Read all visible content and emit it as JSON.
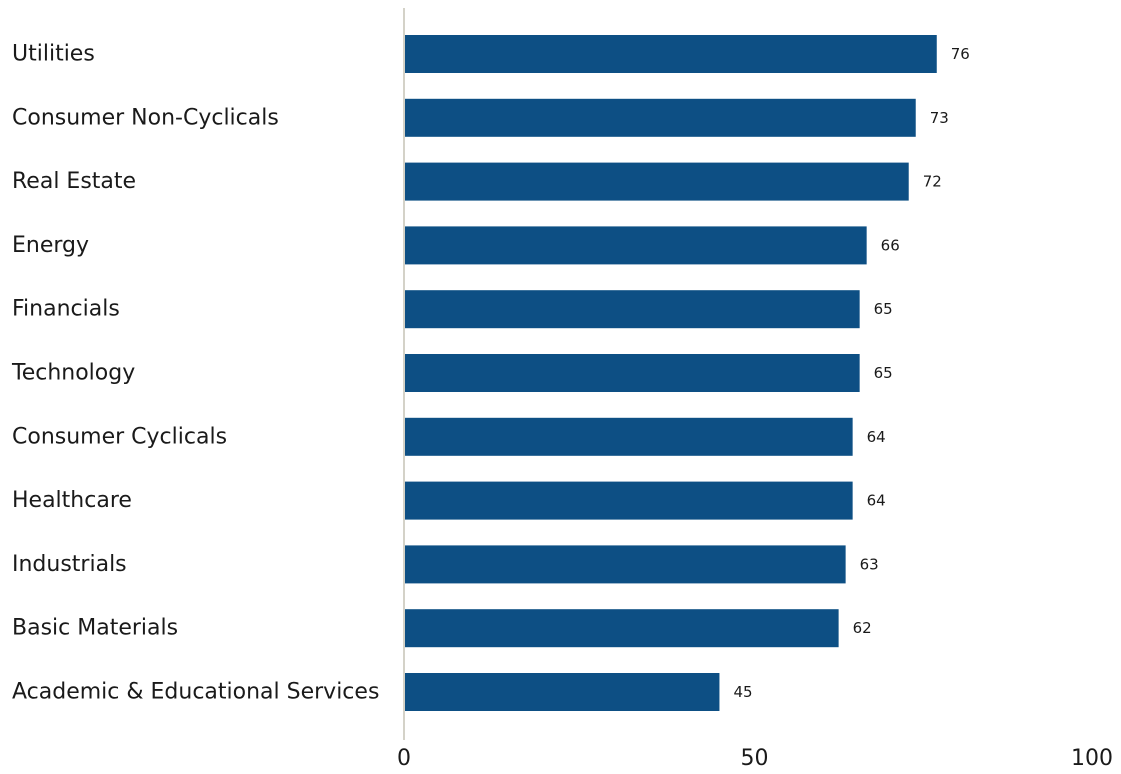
{
  "chart_data": {
    "type": "bar",
    "orientation": "horizontal",
    "categories": [
      "Utilities",
      "Consumer Non-Cyclicals",
      "Real Estate",
      "Energy",
      "Financials",
      "Technology",
      "Consumer Cyclicals",
      "Healthcare",
      "Industrials",
      "Basic Materials",
      "Academic & Educational Services"
    ],
    "values": [
      76,
      73,
      72,
      66,
      65,
      65,
      64,
      64,
      63,
      62,
      45
    ],
    "data_labels": [
      "76",
      "73",
      "72",
      "66",
      "65",
      "65",
      "64",
      "64",
      "63",
      "62",
      "45"
    ],
    "xlim": [
      0,
      100
    ],
    "x_ticks": [
      0,
      50,
      100
    ],
    "x_tick_labels": [
      "0",
      "50",
      "100"
    ],
    "grid": false,
    "legend": "none",
    "bar_color": "#0d4f84",
    "axis_color": "#d4d2c8"
  }
}
